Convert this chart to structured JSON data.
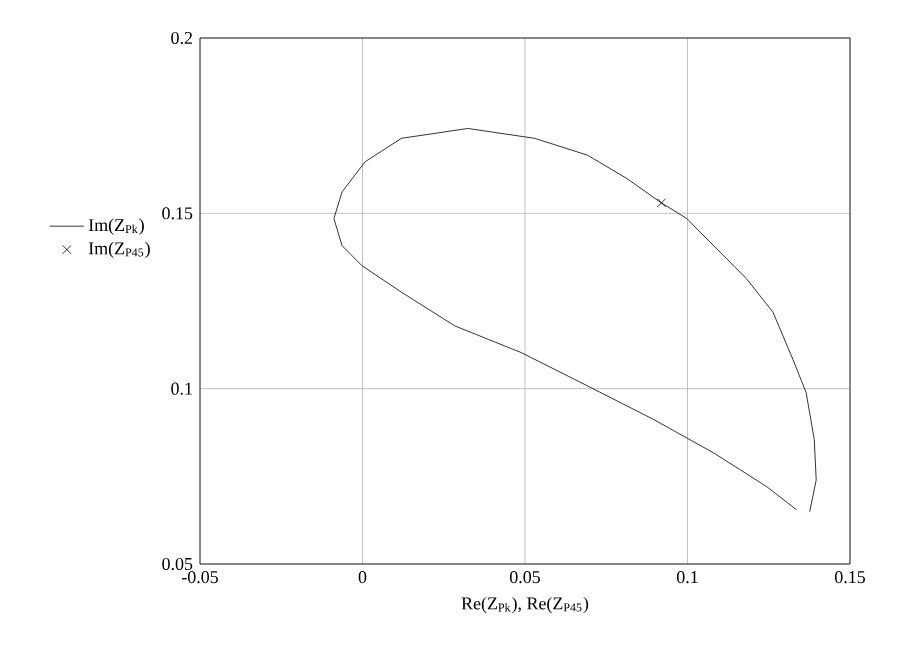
{
  "chart_data": {
    "type": "line",
    "xlabel": "Re(Z$_{Pk}$), Re(Z$_{P45}$)",
    "xlim": [
      -0.05,
      0.15
    ],
    "xticks": [
      -0.05,
      0,
      0.05,
      0.1,
      0.15
    ],
    "ylim": [
      0.05,
      0.2
    ],
    "yticks": [
      0.05,
      0.1,
      0.15,
      0.2
    ],
    "grid": true,
    "legend": "left",
    "series": [
      {
        "name": "Im(Z$_{Pk}$)",
        "color": "#000000",
        "marker": "none",
        "line_style": "solid",
        "x": [
          0.1376,
          0.1396,
          0.139,
          0.1365,
          0.1324,
          0.1263,
          0.1182,
          0.108,
          0.0998,
          0.0916,
          0.0814,
          0.0692,
          0.0529,
          0.0324,
          0.012,
          0.0008,
          -0.0063,
          -0.0088,
          -0.0063,
          -0.0002,
          0.012,
          0.0284,
          0.0488,
          0.0692,
          0.0896,
          0.108,
          0.1243,
          0.1335
        ],
        "values": [
          0.0649,
          0.074,
          0.0855,
          0.0989,
          0.1084,
          0.1218,
          0.1313,
          0.1408,
          0.1485,
          0.1532,
          0.1599,
          0.1666,
          0.1714,
          0.1742,
          0.1714,
          0.1647,
          0.1561,
          0.1485,
          0.1408,
          0.1351,
          0.1275,
          0.1179,
          0.1103,
          0.1008,
          0.0912,
          0.0817,
          0.0721,
          0.0655
        ]
      },
      {
        "name": "Im(Z$_{P45}$)",
        "type": "scatter",
        "color": "#000000",
        "marker": "cross",
        "x": [
          0.092
        ],
        "values": [
          0.153
        ]
      }
    ]
  }
}
